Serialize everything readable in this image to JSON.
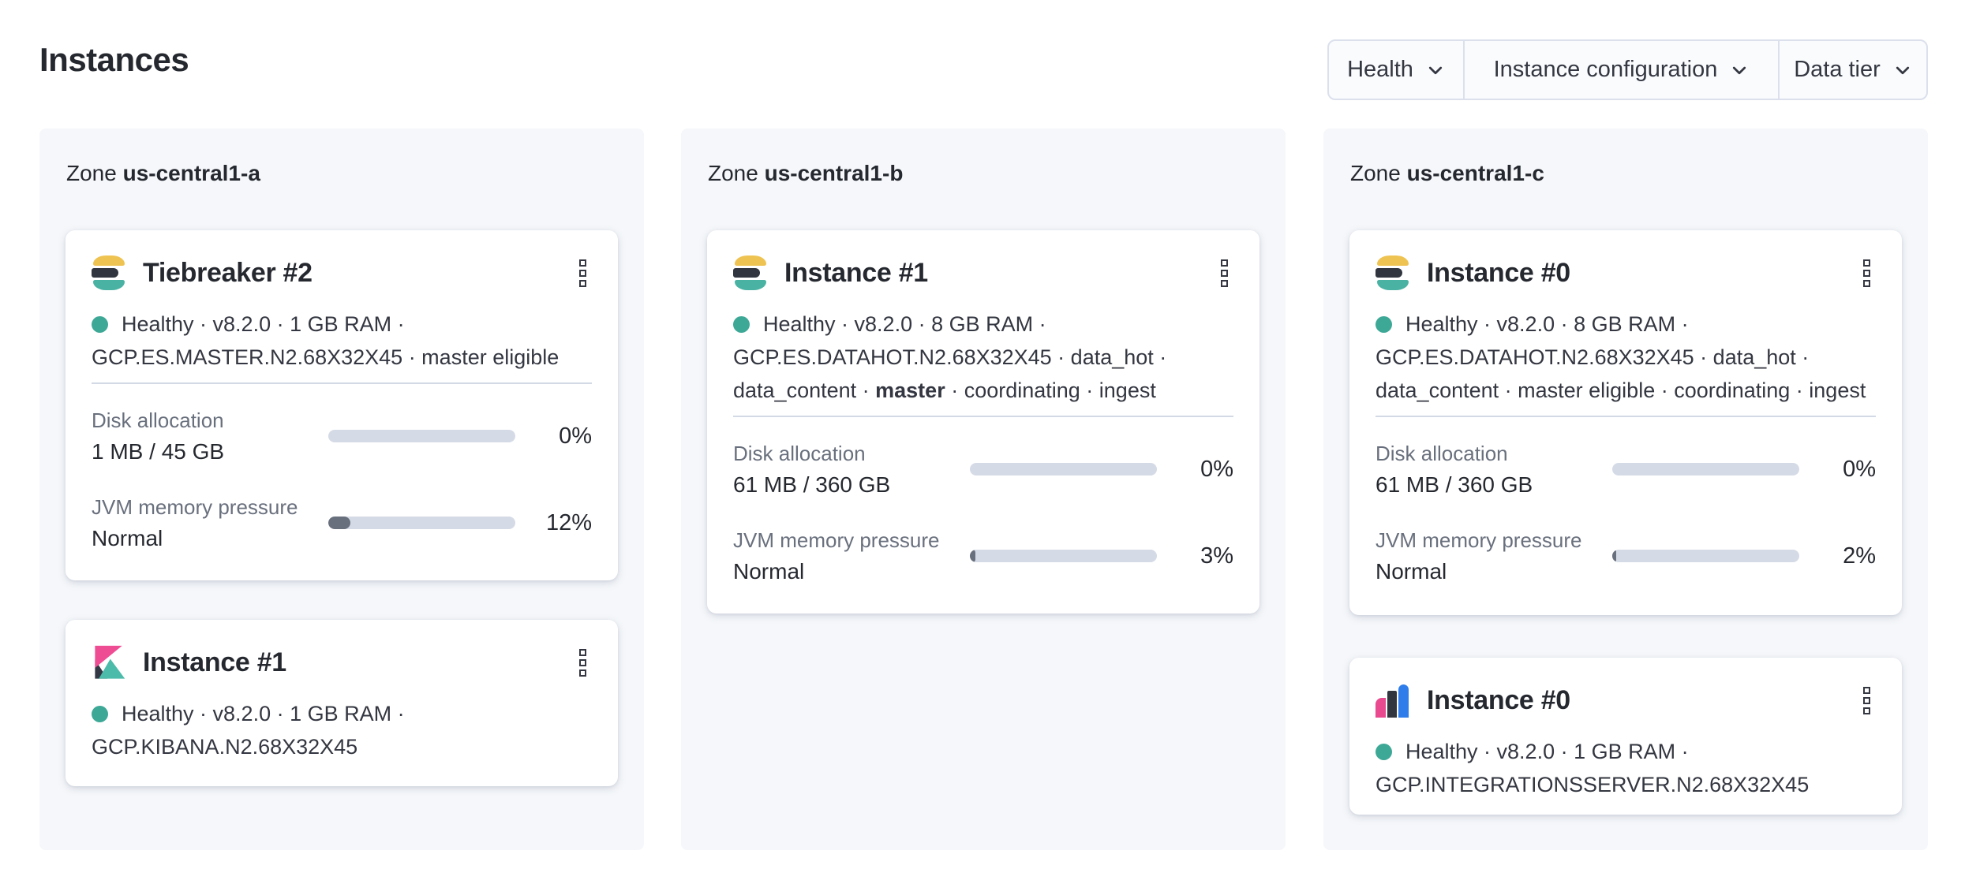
{
  "page": {
    "title": "Instances"
  },
  "filters": {
    "health": "Health",
    "instance_configuration": "Instance configuration",
    "data_tier": "Data tier"
  },
  "zones": {
    "a": {
      "prefix": "Zone",
      "name": "us-central1-a"
    },
    "b": {
      "prefix": "Zone",
      "name": "us-central1-b"
    },
    "c": {
      "prefix": "Zone",
      "name": "us-central1-c"
    }
  },
  "cards": {
    "a1": {
      "title": "Tiebreaker #2",
      "logo": "elasticsearch",
      "status_line1": "Healthy · v8.2.0 · 1 GB RAM ·",
      "status_line2": "GCP.ES.MASTER.N2.68X32X45 · master eligible",
      "disk": {
        "label": "Disk allocation",
        "value": "1 MB / 45 GB",
        "percent": "0%",
        "fill_pct": 0
      },
      "jvm": {
        "label": "JVM memory pressure",
        "value": "Normal",
        "percent": "12%",
        "fill_pct": 12
      }
    },
    "a2": {
      "title": "Instance #1",
      "logo": "kibana",
      "status_line1": "Healthy · v8.2.0 · 1 GB RAM ·",
      "status_line2": "GCP.KIBANA.N2.68X32X45"
    },
    "b1": {
      "title": "Instance #1",
      "logo": "elasticsearch",
      "status_line1": "Healthy · v8.2.0 · 8 GB RAM ·",
      "status_line2": "GCP.ES.DATAHOT.N2.68X32X45 · data_hot ·",
      "status_line3_pre": "data_content · ",
      "status_line3_bold": "master",
      "status_line3_post": " · coordinating · ingest",
      "disk": {
        "label": "Disk allocation",
        "value": "61 MB / 360 GB",
        "percent": "0%",
        "fill_pct": 0
      },
      "jvm": {
        "label": "JVM memory pressure",
        "value": "Normal",
        "percent": "3%",
        "fill_pct": 3
      }
    },
    "c1": {
      "title": "Instance #0",
      "logo": "elasticsearch",
      "status_line1": "Healthy · v8.2.0 · 8 GB RAM ·",
      "status_line2": "GCP.ES.DATAHOT.N2.68X32X45 · data_hot ·",
      "status_line3": "data_content · master eligible · coordinating · ingest",
      "disk": {
        "label": "Disk allocation",
        "value": "61 MB / 360 GB",
        "percent": "0%",
        "fill_pct": 0
      },
      "jvm": {
        "label": "JVM memory pressure",
        "value": "Normal",
        "percent": "2%",
        "fill_pct": 2
      }
    },
    "c2": {
      "title": "Instance #0",
      "logo": "integrations-server",
      "status_line1": "Healthy · v8.2.0 · 1 GB RAM ·",
      "status_line2": "GCP.INTEGRATIONSSERVER.N2.68X32X45"
    }
  },
  "colors": {
    "accent_teal": "#3ea897",
    "panel_bg": "#f5f7fa",
    "track": "#d5dbe6",
    "fill": "#69707d",
    "es_yellow": "#efc352",
    "es_dark": "#30353f",
    "es_teal": "#4ab2a3",
    "kibana_pink": "#ee4c93",
    "integrations_blue": "#2f7dea"
  }
}
